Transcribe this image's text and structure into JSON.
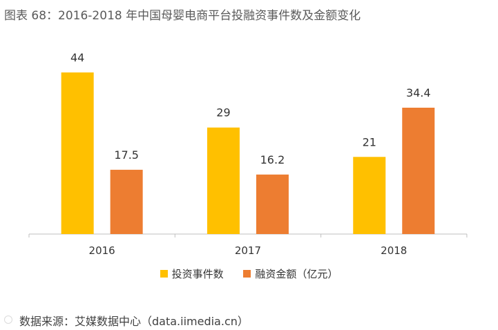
{
  "title": "图表 68：2016-2018 年中国母婴电商平台投融资事件数及金额变化",
  "chart_data": {
    "type": "bar",
    "categories": [
      "2016",
      "2017",
      "2018"
    ],
    "series": [
      {
        "name": "投资事件数",
        "values": [
          44,
          29,
          21
        ],
        "labels": [
          "44",
          "29",
          "21"
        ],
        "color": "#FFC000"
      },
      {
        "name": "融资金额（亿元）",
        "values": [
          17.5,
          16.2,
          34.4
        ],
        "labels": [
          "17.5",
          "16.2",
          "34.4"
        ],
        "color": "#ED7D31"
      }
    ],
    "ylim": [
      0,
      50
    ],
    "grid": false,
    "legend": "bottom"
  },
  "source": "数据来源：艾媒数据中心（data.iimedia.cn）"
}
